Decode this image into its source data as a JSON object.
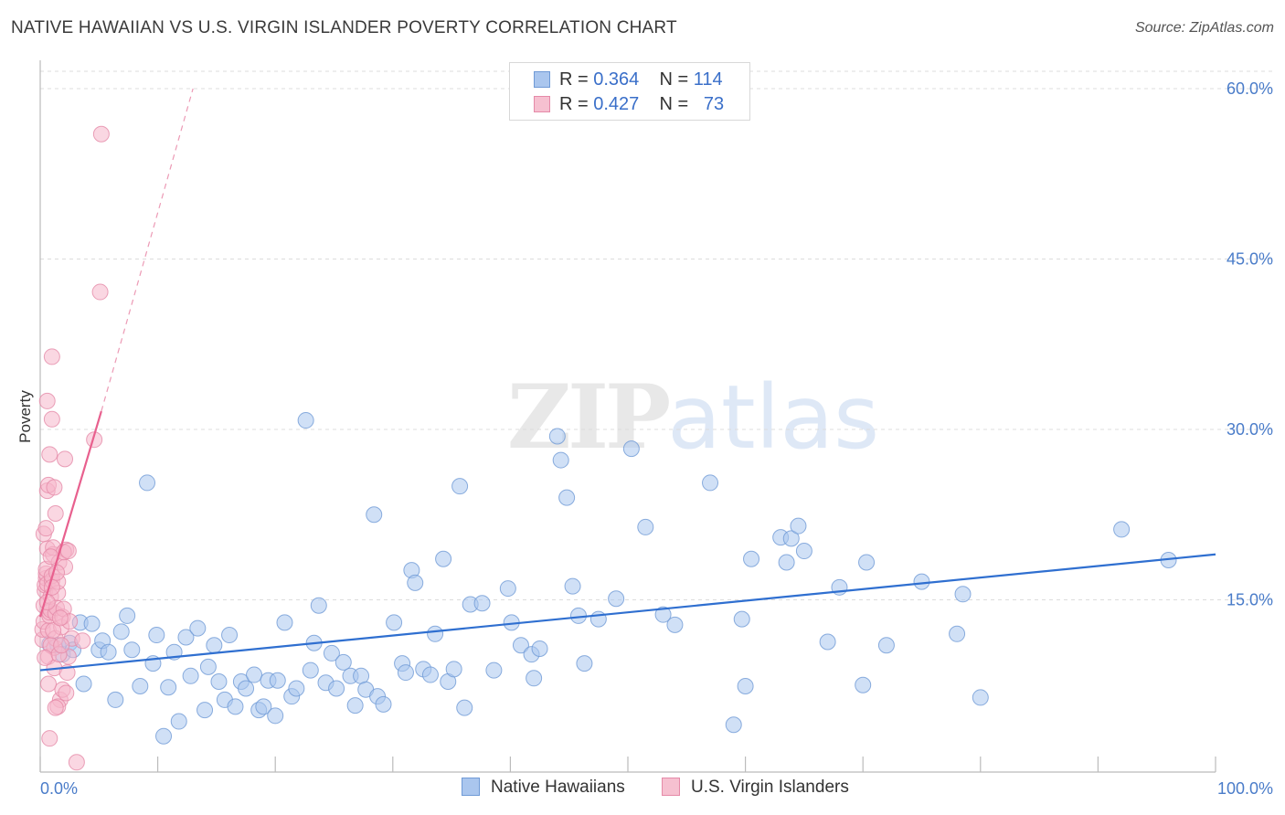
{
  "title": "NATIVE HAWAIIAN VS U.S. VIRGIN ISLANDER POVERTY CORRELATION CHART",
  "source": "Source: ZipAtlas.com",
  "watermark": {
    "zip": "ZIP",
    "atlas": "atlas"
  },
  "colors": {
    "blue": "#4a86d8",
    "blue_fill": "#aac6ee",
    "pink": "#e8608e",
    "pink_fill": "#f6b6ca",
    "axis_text": "#4a7cc9",
    "grid": "#dcdcdc"
  },
  "legend": {
    "rows": [
      {
        "r_label": "R =",
        "r_value": "0.364",
        "n_label": "N =",
        "n_value": "114"
      },
      {
        "r_label": "R =",
        "r_value": "0.427",
        "n_label": "N =",
        "n_value": "73"
      }
    ]
  },
  "bottom_legend": {
    "blue": "Native Hawaiians",
    "pink": "U.S. Virgin Islanders"
  },
  "chart_data": {
    "type": "scatter",
    "title": "NATIVE HAWAIIAN VS U.S. VIRGIN ISLANDER POVERTY CORRELATION CHART",
    "xlabel": "",
    "ylabel": "Poverty",
    "xlim": [
      0,
      100
    ],
    "ylim": [
      0,
      63
    ],
    "x_ticks": [
      "0.0%",
      "100.0%"
    ],
    "y_ticks": [
      {
        "value": 15,
        "label": "15.0%"
      },
      {
        "value": 30,
        "label": "30.0%"
      },
      {
        "value": 45,
        "label": "45.0%"
      },
      {
        "value": 60,
        "label": "60.0%"
      }
    ],
    "series": [
      {
        "name": "Native Hawaiians",
        "r": 0.364,
        "n": 114,
        "trend": {
          "x0": 0,
          "y0": 8.8,
          "x1": 100,
          "y1": 19.0
        },
        "points": [
          [
            0.8,
            11.1
          ],
          [
            1.5,
            11.0
          ],
          [
            1.9,
            10.2
          ],
          [
            2.5,
            11.2
          ],
          [
            2.8,
            10.6
          ],
          [
            3.4,
            13.0
          ],
          [
            3.7,
            7.6
          ],
          [
            4.4,
            12.9
          ],
          [
            5.0,
            10.6
          ],
          [
            5.3,
            11.4
          ],
          [
            5.8,
            10.4
          ],
          [
            6.4,
            6.2
          ],
          [
            6.9,
            12.2
          ],
          [
            7.4,
            13.6
          ],
          [
            7.8,
            10.6
          ],
          [
            8.5,
            7.4
          ],
          [
            9.1,
            25.3
          ],
          [
            9.6,
            9.4
          ],
          [
            9.9,
            11.9
          ],
          [
            10.5,
            3.0
          ],
          [
            10.9,
            7.3
          ],
          [
            11.4,
            10.4
          ],
          [
            11.8,
            4.3
          ],
          [
            12.4,
            11.7
          ],
          [
            12.8,
            8.3
          ],
          [
            13.4,
            12.5
          ],
          [
            14.0,
            5.3
          ],
          [
            14.3,
            9.1
          ],
          [
            14.8,
            11.0
          ],
          [
            15.2,
            7.8
          ],
          [
            15.7,
            6.2
          ],
          [
            16.1,
            11.9
          ],
          [
            16.6,
            5.6
          ],
          [
            17.1,
            7.8
          ],
          [
            17.5,
            7.2
          ],
          [
            18.2,
            8.4
          ],
          [
            18.6,
            5.3
          ],
          [
            19.0,
            5.6
          ],
          [
            19.4,
            7.9
          ],
          [
            20.0,
            4.8
          ],
          [
            20.2,
            7.9
          ],
          [
            20.8,
            13.0
          ],
          [
            21.4,
            6.5
          ],
          [
            21.8,
            7.2
          ],
          [
            22.6,
            30.8
          ],
          [
            23.0,
            8.8
          ],
          [
            23.3,
            11.2
          ],
          [
            23.7,
            14.5
          ],
          [
            24.3,
            7.7
          ],
          [
            24.8,
            10.3
          ],
          [
            25.2,
            7.2
          ],
          [
            25.8,
            9.5
          ],
          [
            26.4,
            8.3
          ],
          [
            26.8,
            5.7
          ],
          [
            27.3,
            8.3
          ],
          [
            27.7,
            7.1
          ],
          [
            28.4,
            22.5
          ],
          [
            28.7,
            6.5
          ],
          [
            29.2,
            5.8
          ],
          [
            30.1,
            13.0
          ],
          [
            30.8,
            9.4
          ],
          [
            31.1,
            8.6
          ],
          [
            31.6,
            17.6
          ],
          [
            31.9,
            16.5
          ],
          [
            32.6,
            8.9
          ],
          [
            33.2,
            8.4
          ],
          [
            33.6,
            12.0
          ],
          [
            34.3,
            18.6
          ],
          [
            34.7,
            7.8
          ],
          [
            35.2,
            8.9
          ],
          [
            35.7,
            25.0
          ],
          [
            36.1,
            5.5
          ],
          [
            36.6,
            14.6
          ],
          [
            37.6,
            14.7
          ],
          [
            38.6,
            8.8
          ],
          [
            39.8,
            16.0
          ],
          [
            40.1,
            13.0
          ],
          [
            40.9,
            11.0
          ],
          [
            41.8,
            10.2
          ],
          [
            42.0,
            8.1
          ],
          [
            42.5,
            10.7
          ],
          [
            44.0,
            29.4
          ],
          [
            44.3,
            27.3
          ],
          [
            44.8,
            24.0
          ],
          [
            45.3,
            16.2
          ],
          [
            45.8,
            13.6
          ],
          [
            46.3,
            9.4
          ],
          [
            47.5,
            13.3
          ],
          [
            49.0,
            15.1
          ],
          [
            50.3,
            28.3
          ],
          [
            51.5,
            21.4
          ],
          [
            53.0,
            13.7
          ],
          [
            54.0,
            12.8
          ],
          [
            57.0,
            25.3
          ],
          [
            59.0,
            4.0
          ],
          [
            59.7,
            13.3
          ],
          [
            60.0,
            7.4
          ],
          [
            60.5,
            18.6
          ],
          [
            63.0,
            20.5
          ],
          [
            63.5,
            18.3
          ],
          [
            63.9,
            20.4
          ],
          [
            64.5,
            21.5
          ],
          [
            65.0,
            19.3
          ],
          [
            67.0,
            11.3
          ],
          [
            68.0,
            16.1
          ],
          [
            70.0,
            7.5
          ],
          [
            70.3,
            18.3
          ],
          [
            72.0,
            11.0
          ],
          [
            75.0,
            16.6
          ],
          [
            78.0,
            12.0
          ],
          [
            78.5,
            15.5
          ],
          [
            80.0,
            6.4
          ],
          [
            92.0,
            21.2
          ],
          [
            96.0,
            18.5
          ]
        ]
      },
      {
        "name": "U.S. Virgin Islanders",
        "r": 0.427,
        "n": 73,
        "trend": {
          "x0": 0,
          "y0": 13.5,
          "x1": 5.2,
          "y1": 31.6,
          "dash_x1": 13.0,
          "dash_y1": 60.0
        },
        "points": [
          [
            0.2,
            11.5
          ],
          [
            0.2,
            12.4
          ],
          [
            0.3,
            13.1
          ],
          [
            0.3,
            14.5
          ],
          [
            0.4,
            15.8
          ],
          [
            0.4,
            16.3
          ],
          [
            0.5,
            16.9
          ],
          [
            0.5,
            17.3
          ],
          [
            0.5,
            17.7
          ],
          [
            0.6,
            16.4
          ],
          [
            0.6,
            19.5
          ],
          [
            0.7,
            10.0
          ],
          [
            0.7,
            12.3
          ],
          [
            0.8,
            13.6
          ],
          [
            0.8,
            13.9
          ],
          [
            0.9,
            14.1
          ],
          [
            0.9,
            15.3
          ],
          [
            1.0,
            16.7
          ],
          [
            1.0,
            17.1
          ],
          [
            1.1,
            19.0
          ],
          [
            1.1,
            19.6
          ],
          [
            1.2,
            9.0
          ],
          [
            1.2,
            10.8
          ],
          [
            1.3,
            11.6
          ],
          [
            1.3,
            13.8
          ],
          [
            1.4,
            14.3
          ],
          [
            1.5,
            15.6
          ],
          [
            1.5,
            16.6
          ],
          [
            1.6,
            18.3
          ],
          [
            1.7,
            6.2
          ],
          [
            1.8,
            12.6
          ],
          [
            1.9,
            13.5
          ],
          [
            2.0,
            14.2
          ],
          [
            2.1,
            17.9
          ],
          [
            2.2,
            19.4
          ],
          [
            2.3,
            8.6
          ],
          [
            2.4,
            10.0
          ],
          [
            2.5,
            13.1
          ],
          [
            0.3,
            20.8
          ],
          [
            0.5,
            21.3
          ],
          [
            0.6,
            24.6
          ],
          [
            0.7,
            25.1
          ],
          [
            0.8,
            27.8
          ],
          [
            1.2,
            24.9
          ],
          [
            1.3,
            22.6
          ],
          [
            0.6,
            32.5
          ],
          [
            1.0,
            36.4
          ],
          [
            1.0,
            30.9
          ],
          [
            2.1,
            27.4
          ],
          [
            4.6,
            29.1
          ],
          [
            5.1,
            42.1
          ],
          [
            5.2,
            56.0
          ],
          [
            0.8,
            2.8
          ],
          [
            3.1,
            0.7
          ],
          [
            1.5,
            5.6
          ],
          [
            1.9,
            7.1
          ],
          [
            2.2,
            6.8
          ],
          [
            1.3,
            5.5
          ],
          [
            0.7,
            7.6
          ],
          [
            0.9,
            11.0
          ],
          [
            1.1,
            12.3
          ],
          [
            0.4,
            9.9
          ],
          [
            2.7,
            11.6
          ],
          [
            3.6,
            11.4
          ],
          [
            1.6,
            10.2
          ],
          [
            2.0,
            19.2
          ],
          [
            2.4,
            19.3
          ],
          [
            1.4,
            17.4
          ],
          [
            0.9,
            18.8
          ],
          [
            1.7,
            13.4
          ],
          [
            0.6,
            14.8
          ],
          [
            1.8,
            11.0
          ],
          [
            1.0,
            16.1
          ]
        ]
      }
    ]
  }
}
